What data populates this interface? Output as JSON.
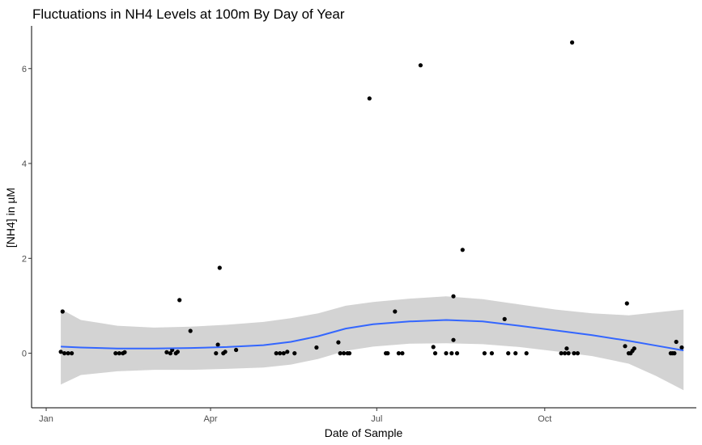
{
  "chart_data": {
    "type": "scatter",
    "title": "Fluctuations in NH4 Levels at 100m By Day of Year",
    "xlabel": "Date of Sample",
    "ylabel": "[NH4] in µM",
    "x_ticks": [
      {
        "label": "Jan",
        "doy": 1
      },
      {
        "label": "Apr",
        "doy": 91
      },
      {
        "label": "Jul",
        "doy": 182
      },
      {
        "label": "Oct",
        "doy": 274
      }
    ],
    "y_ticks": [
      0,
      2,
      4,
      6
    ],
    "xlim_doy": [
      -7,
      357
    ],
    "ylim": [
      -1.15,
      6.9
    ],
    "point_color": "#000000",
    "smooth_color": "#3366ff",
    "band_color": "#d3d3d3",
    "points": [
      {
        "doy": 9,
        "value": 0.03
      },
      {
        "doy": 10,
        "value": 0.88
      },
      {
        "doy": 11,
        "value": 0.0
      },
      {
        "doy": 13,
        "value": 0.0
      },
      {
        "doy": 15,
        "value": 0.0
      },
      {
        "doy": 39,
        "value": 0.0
      },
      {
        "doy": 41,
        "value": 0.0
      },
      {
        "doy": 43,
        "value": 0.0
      },
      {
        "doy": 44,
        "value": 0.02
      },
      {
        "doy": 67,
        "value": 0.02
      },
      {
        "doy": 69,
        "value": 0.0
      },
      {
        "doy": 70,
        "value": 0.07
      },
      {
        "doy": 72,
        "value": 0.0
      },
      {
        "doy": 73,
        "value": 0.03
      },
      {
        "doy": 74,
        "value": 1.12
      },
      {
        "doy": 80,
        "value": 0.47
      },
      {
        "doy": 94,
        "value": 0.0
      },
      {
        "doy": 95,
        "value": 0.18
      },
      {
        "doy": 96,
        "value": 1.8
      },
      {
        "doy": 98,
        "value": 0.0
      },
      {
        "doy": 99,
        "value": 0.03
      },
      {
        "doy": 105,
        "value": 0.07
      },
      {
        "doy": 127,
        "value": 0.0
      },
      {
        "doy": 129,
        "value": 0.0
      },
      {
        "doy": 131,
        "value": 0.0
      },
      {
        "doy": 133,
        "value": 0.03
      },
      {
        "doy": 137,
        "value": 0.0
      },
      {
        "doy": 149,
        "value": 0.12
      },
      {
        "doy": 161,
        "value": 0.23
      },
      {
        "doy": 162,
        "value": 0.0
      },
      {
        "doy": 164,
        "value": 0.0
      },
      {
        "doy": 166,
        "value": 0.0
      },
      {
        "doy": 167,
        "value": 0.0
      },
      {
        "doy": 178,
        "value": 5.37
      },
      {
        "doy": 187,
        "value": 0.0
      },
      {
        "doy": 188,
        "value": 0.0
      },
      {
        "doy": 192,
        "value": 0.88
      },
      {
        "doy": 194,
        "value": 0.0
      },
      {
        "doy": 196,
        "value": 0.0
      },
      {
        "doy": 206,
        "value": 6.07
      },
      {
        "doy": 213,
        "value": 0.13
      },
      {
        "doy": 214,
        "value": 0.0
      },
      {
        "doy": 220,
        "value": 0.0
      },
      {
        "doy": 223,
        "value": 0.0
      },
      {
        "doy": 224,
        "value": 0.28
      },
      {
        "doy": 224,
        "value": 1.2
      },
      {
        "doy": 226,
        "value": 0.0
      },
      {
        "doy": 229,
        "value": 2.18
      },
      {
        "doy": 241,
        "value": 0.0
      },
      {
        "doy": 245,
        "value": 0.0
      },
      {
        "doy": 252,
        "value": 0.72
      },
      {
        "doy": 254,
        "value": 0.0
      },
      {
        "doy": 258,
        "value": 0.0
      },
      {
        "doy": 264,
        "value": 0.0
      },
      {
        "doy": 283,
        "value": 0.0
      },
      {
        "doy": 285,
        "value": 0.0
      },
      {
        "doy": 286,
        "value": 0.1
      },
      {
        "doy": 287,
        "value": 0.0
      },
      {
        "doy": 289,
        "value": 6.55
      },
      {
        "doy": 290,
        "value": 0.0
      },
      {
        "doy": 292,
        "value": 0.0
      },
      {
        "doy": 318,
        "value": 0.15
      },
      {
        "doy": 319,
        "value": 1.05
      },
      {
        "doy": 320,
        "value": 0.0
      },
      {
        "doy": 321,
        "value": 0.0
      },
      {
        "doy": 322,
        "value": 0.05
      },
      {
        "doy": 323,
        "value": 0.1
      },
      {
        "doy": 343,
        "value": 0.0
      },
      {
        "doy": 344,
        "value": 0.0
      },
      {
        "doy": 345,
        "value": 0.0
      },
      {
        "doy": 346,
        "value": 0.24
      },
      {
        "doy": 349,
        "value": 0.12
      }
    ],
    "smooth": [
      {
        "doy": 9,
        "fit": 0.14,
        "lo": -0.66,
        "hi": 0.93
      },
      {
        "doy": 20,
        "fit": 0.12,
        "lo": -0.46,
        "hi": 0.7
      },
      {
        "doy": 40,
        "fit": 0.1,
        "lo": -0.38,
        "hi": 0.58
      },
      {
        "doy": 60,
        "fit": 0.1,
        "lo": -0.35,
        "hi": 0.54
      },
      {
        "doy": 80,
        "fit": 0.11,
        "lo": -0.35,
        "hi": 0.56
      },
      {
        "doy": 100,
        "fit": 0.13,
        "lo": -0.33,
        "hi": 0.6
      },
      {
        "doy": 120,
        "fit": 0.17,
        "lo": -0.3,
        "hi": 0.66
      },
      {
        "doy": 135,
        "fit": 0.24,
        "lo": -0.24,
        "hi": 0.74
      },
      {
        "doy": 150,
        "fit": 0.36,
        "lo": -0.12,
        "hi": 0.84
      },
      {
        "doy": 165,
        "fit": 0.52,
        "lo": 0.05,
        "hi": 1.0
      },
      {
        "doy": 180,
        "fit": 0.61,
        "lo": 0.14,
        "hi": 1.08
      },
      {
        "doy": 200,
        "fit": 0.67,
        "lo": 0.2,
        "hi": 1.15
      },
      {
        "doy": 220,
        "fit": 0.7,
        "lo": 0.21,
        "hi": 1.2
      },
      {
        "doy": 240,
        "fit": 0.67,
        "lo": 0.19,
        "hi": 1.14
      },
      {
        "doy": 260,
        "fit": 0.58,
        "lo": 0.13,
        "hi": 1.03
      },
      {
        "doy": 280,
        "fit": 0.48,
        "lo": 0.04,
        "hi": 0.92
      },
      {
        "doy": 300,
        "fit": 0.38,
        "lo": -0.06,
        "hi": 0.84
      },
      {
        "doy": 320,
        "fit": 0.26,
        "lo": -0.22,
        "hi": 0.8
      },
      {
        "doy": 335,
        "fit": 0.16,
        "lo": -0.48,
        "hi": 0.86
      },
      {
        "doy": 350,
        "fit": 0.06,
        "lo": -0.78,
        "hi": 0.92
      }
    ]
  }
}
